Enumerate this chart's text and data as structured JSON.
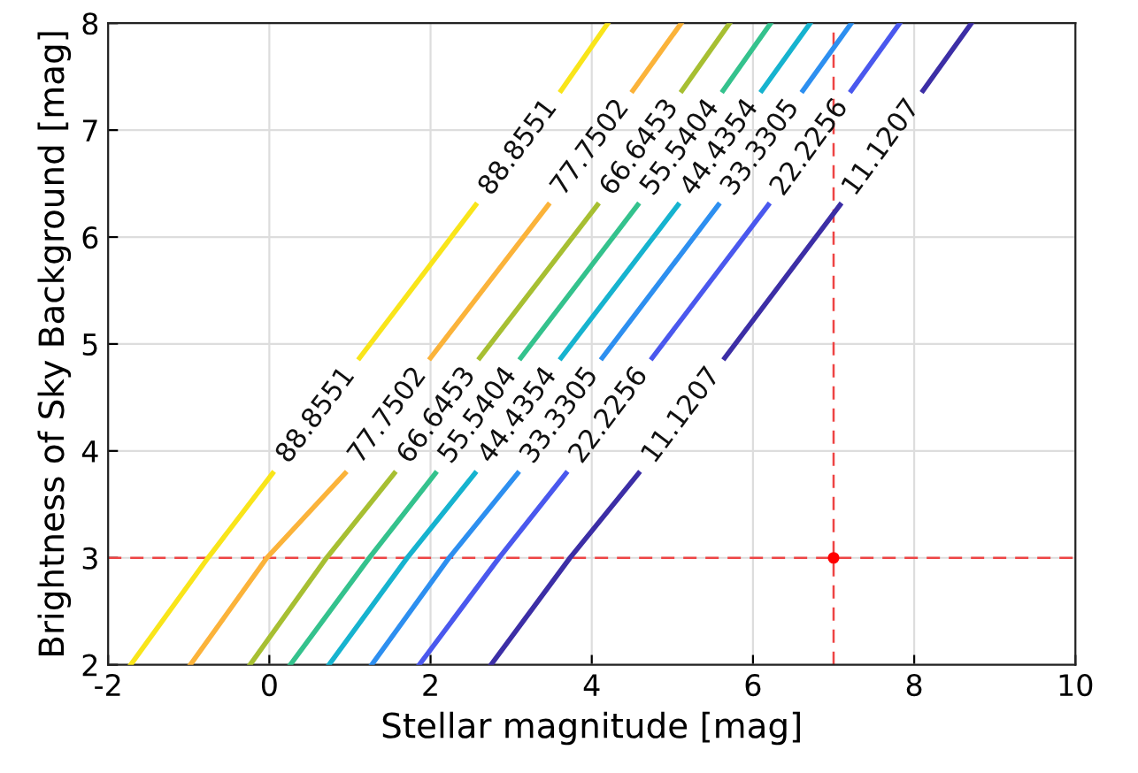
{
  "chart_data": {
    "type": "line",
    "xlabel": "Stellar magnitude [mag]",
    "ylabel": "Brightness of Sky Background [mag]",
    "xlim": [
      -2,
      10
    ],
    "ylim": [
      2,
      8
    ],
    "xticks": [
      -2,
      0,
      2,
      4,
      6,
      8,
      10
    ],
    "yticks": [
      2,
      3,
      4,
      5,
      6,
      7,
      8
    ],
    "grid": true,
    "legend": false,
    "series": [
      {
        "name": "88.8551",
        "color": "#f9e51a",
        "x": [
          -1.72,
          -0.76,
          0.04,
          0.58,
          1.12,
          2.56,
          3.09,
          3.62,
          4.2
        ],
        "values": [
          2,
          3,
          3.79,
          null,
          4.87,
          6.3,
          null,
          7.37,
          8
        ]
      },
      {
        "name": "77.7502",
        "color": "#fbb33a",
        "x": [
          -0.98,
          -0.03,
          0.94,
          1.47,
          2.0,
          3.46,
          3.98,
          4.51,
          5.11
        ],
        "values": [
          2,
          3,
          3.79,
          null,
          4.87,
          6.3,
          null,
          7.37,
          8
        ]
      },
      {
        "name": "66.6453",
        "color": "#a7bf32",
        "x": [
          -0.24,
          0.71,
          1.55,
          2.08,
          2.61,
          4.07,
          4.6,
          5.12,
          5.71
        ],
        "values": [
          2,
          3,
          3.79,
          null,
          4.87,
          6.3,
          null,
          7.37,
          8
        ]
      },
      {
        "name": "55.5404",
        "color": "#34c28d",
        "x": [
          0.26,
          1.24,
          2.06,
          2.59,
          3.12,
          4.57,
          5.1,
          5.63,
          6.22
        ],
        "values": [
          2,
          3,
          3.79,
          null,
          4.87,
          6.3,
          null,
          7.37,
          8
        ]
      },
      {
        "name": "44.4354",
        "color": "#16b3cf",
        "x": [
          0.74,
          1.71,
          2.55,
          3.08,
          3.62,
          5.07,
          5.59,
          6.11,
          6.71
        ],
        "values": [
          2,
          3,
          3.79,
          null,
          4.87,
          6.3,
          null,
          7.37,
          8
        ]
      },
      {
        "name": "33.3305",
        "color": "#2d8ff0",
        "x": [
          1.27,
          2.23,
          3.08,
          3.6,
          4.13,
          5.57,
          6.1,
          6.62,
          7.22
        ],
        "values": [
          2,
          3,
          3.79,
          null,
          4.87,
          6.3,
          null,
          7.37,
          8
        ]
      },
      {
        "name": "22.2256",
        "color": "#4a58ee",
        "x": [
          1.86,
          2.85,
          3.68,
          4.21,
          4.75,
          6.19,
          6.7,
          7.22,
          7.82
        ],
        "values": [
          2,
          3,
          3.79,
          null,
          4.87,
          6.3,
          null,
          7.37,
          8
        ]
      },
      {
        "name": "11.1207",
        "color": "#3c2ea6",
        "x": [
          2.75,
          3.73,
          4.58,
          5.11,
          5.65,
          7.08,
          7.6,
          8.11,
          8.71
        ],
        "values": [
          2,
          3,
          3.79,
          null,
          4.87,
          6.3,
          null,
          7.37,
          8
        ]
      },
      {
        "type": "scatter",
        "color": "#ff0000",
        "marker": "circle",
        "x": [
          7
        ],
        "values": [
          3
        ]
      }
    ],
    "ref_lines": [
      {
        "axis": "x",
        "value": 7,
        "color": "#ee4444",
        "line_style": "dashed"
      },
      {
        "axis": "y",
        "value": 3,
        "color": "#ee4444",
        "line_style": "dashed"
      }
    ]
  }
}
